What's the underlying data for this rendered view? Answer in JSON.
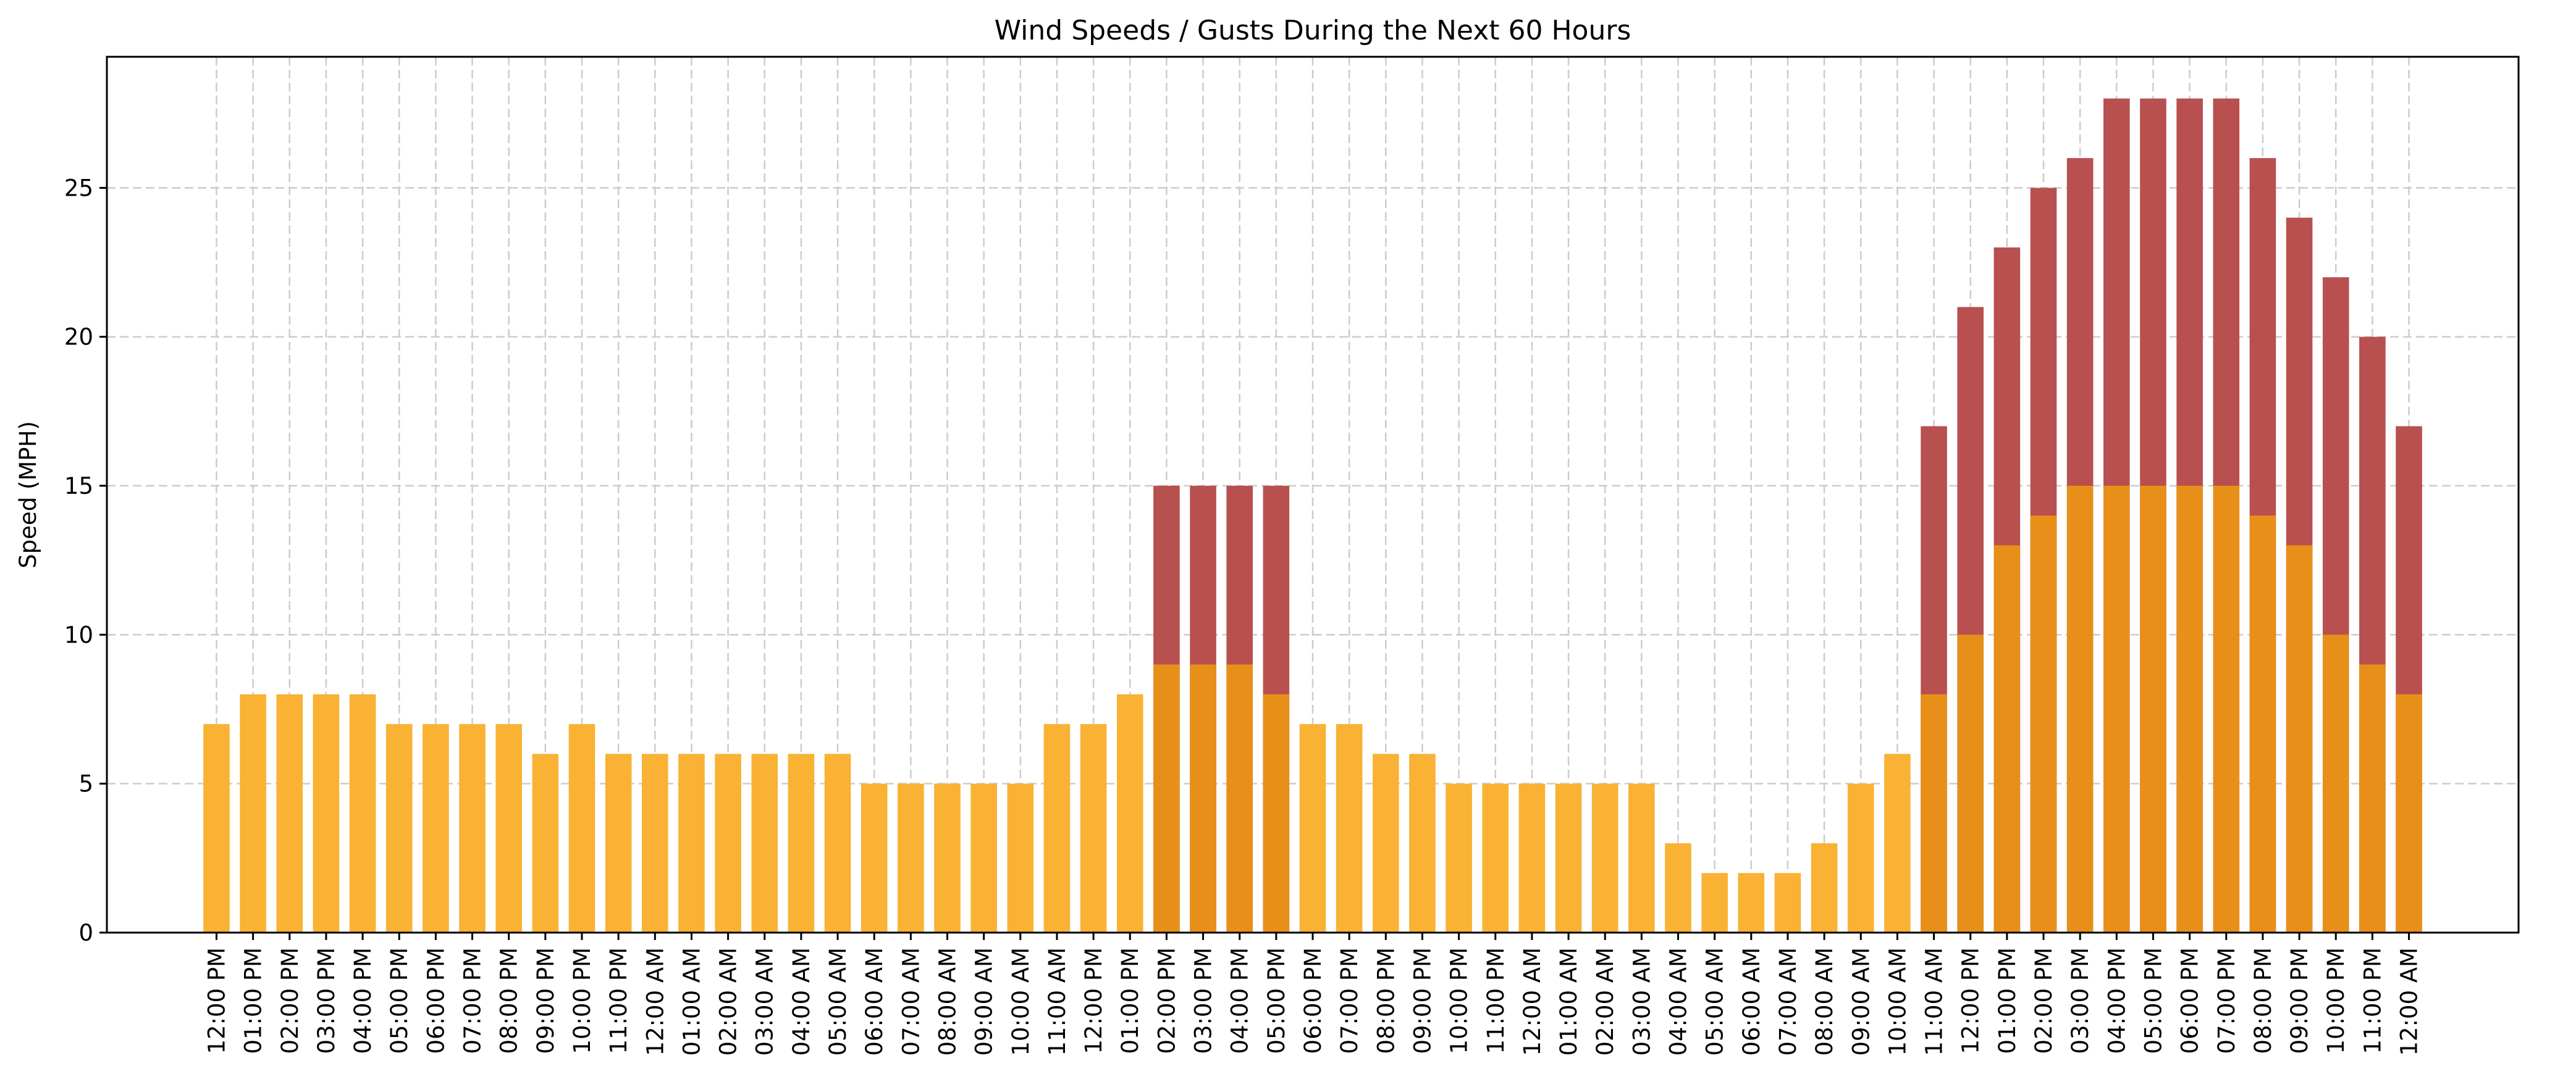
{
  "chart_data": {
    "type": "bar",
    "title": "Wind Speeds / Gusts During the Next 60 Hours",
    "xlabel": "",
    "ylabel": "Speed (MPH)",
    "ylim": [
      0,
      29.4
    ],
    "yticks": [
      0,
      5,
      10,
      15,
      20,
      25
    ],
    "grid": true,
    "legend": "none",
    "categories": [
      "12:00 PM",
      "01:00 PM",
      "02:00 PM",
      "03:00 PM",
      "04:00 PM",
      "05:00 PM",
      "06:00 PM",
      "07:00 PM",
      "08:00 PM",
      "09:00 PM",
      "10:00 PM",
      "11:00 PM",
      "12:00 AM",
      "01:00 AM",
      "02:00 AM",
      "03:00 AM",
      "04:00 AM",
      "05:00 AM",
      "06:00 AM",
      "07:00 AM",
      "08:00 AM",
      "09:00 AM",
      "10:00 AM",
      "11:00 AM",
      "12:00 PM",
      "01:00 PM",
      "02:00 PM",
      "03:00 PM",
      "04:00 PM",
      "05:00 PM",
      "06:00 PM",
      "07:00 PM",
      "08:00 PM",
      "09:00 PM",
      "10:00 PM",
      "11:00 PM",
      "12:00 AM",
      "01:00 AM",
      "02:00 AM",
      "03:00 AM",
      "04:00 AM",
      "05:00 AM",
      "06:00 AM",
      "07:00 AM",
      "08:00 AM",
      "09:00 AM",
      "10:00 AM",
      "11:00 AM",
      "12:00 PM",
      "01:00 PM",
      "02:00 PM",
      "03:00 PM",
      "04:00 PM",
      "05:00 PM",
      "06:00 PM",
      "07:00 PM",
      "08:00 PM",
      "09:00 PM",
      "10:00 PM",
      "11:00 PM",
      "12:00 AM"
    ],
    "series": [
      {
        "values": [
          7,
          8,
          8,
          8,
          8,
          7,
          7,
          7,
          7,
          6,
          7,
          6,
          6,
          6,
          6,
          6,
          6,
          6,
          5,
          5,
          5,
          5,
          5,
          7,
          7,
          8,
          9,
          9,
          9,
          8,
          7,
          7,
          6,
          6,
          5,
          5,
          5,
          5,
          5,
          5,
          3,
          2,
          2,
          2,
          3,
          5,
          6,
          8,
          10,
          13,
          14,
          15,
          15,
          15,
          15,
          15,
          14,
          13,
          10,
          9,
          8
        ],
        "color": "#f9b234",
        "color_when_gusty": "#e88f1a"
      },
      {
        "values": [
          null,
          null,
          null,
          null,
          null,
          null,
          null,
          null,
          null,
          null,
          null,
          null,
          null,
          null,
          null,
          null,
          null,
          null,
          null,
          null,
          null,
          null,
          null,
          null,
          null,
          null,
          15,
          15,
          15,
          15,
          null,
          null,
          null,
          null,
          null,
          null,
          null,
          null,
          null,
          null,
          null,
          null,
          null,
          null,
          null,
          null,
          null,
          17,
          21,
          23,
          25,
          26,
          28,
          28,
          28,
          28,
          26,
          24,
          22,
          20,
          17
        ],
        "color": "#b8504f"
      }
    ]
  }
}
